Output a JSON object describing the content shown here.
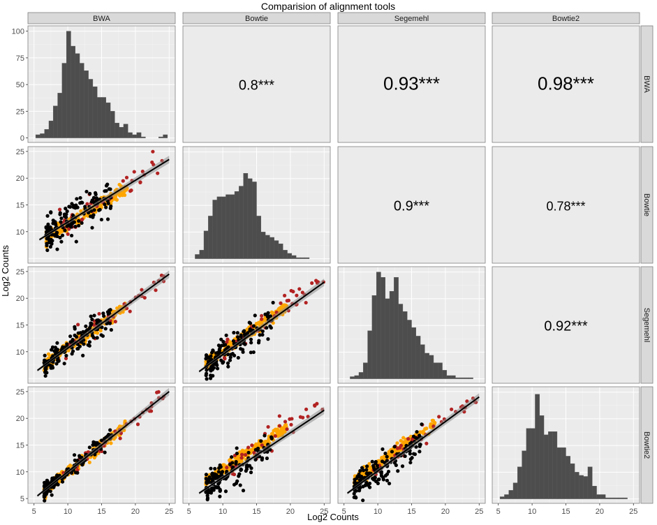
{
  "title": "Comparision of alignment tools",
  "xlabel": "Log2 Counts",
  "ylabel": "Log2 Counts",
  "tools": [
    "BWA",
    "Bowtie",
    "Segemehl",
    "Bowtie2"
  ],
  "axis": {
    "data_range": [
      5,
      25
    ],
    "ticks": [
      5,
      10,
      15,
      20,
      25
    ],
    "inner_ticks": [
      10,
      15,
      20,
      25
    ],
    "hist_count_ticks": [
      0,
      25,
      50,
      75,
      100
    ],
    "hist_count_max": 100
  },
  "colors": {
    "panel_bg": "#ebebeb",
    "hist_bar": "#4d4d4d",
    "point_black": "#000000",
    "point_orange": "#ffa500",
    "point_red": "#b22222",
    "fit_line": "#000000",
    "ribbon": "#8c8c8c"
  },
  "chart_data": {
    "type": "scatter",
    "kind": "pairs-matrix",
    "title": "Comparision of alignment tools",
    "xlabel": "Log2 Counts",
    "ylabel": "Log2 Counts",
    "variables": [
      "BWA",
      "Bowtie",
      "Segemehl",
      "Bowtie2"
    ],
    "xlim": [
      5,
      25
    ],
    "ylim": [
      5,
      25
    ],
    "correlations": [
      {
        "row": "BWA",
        "col": "Bowtie",
        "label": "0.8***",
        "size": "medium"
      },
      {
        "row": "BWA",
        "col": "Segemehl",
        "label": "0.93***",
        "size": "large"
      },
      {
        "row": "BWA",
        "col": "Bowtie2",
        "label": "0.98***",
        "size": "large"
      },
      {
        "row": "Bowtie",
        "col": "Segemehl",
        "label": "0.9***",
        "size": "medium"
      },
      {
        "row": "Bowtie",
        "col": "Bowtie2",
        "label": "0.78***",
        "size": "small"
      },
      {
        "row": "Segemehl",
        "col": "Bowtie2",
        "label": "0.92***",
        "size": "medium"
      }
    ],
    "histograms": [
      {
        "variable": "BWA",
        "bin_start": 5.25,
        "bin_width": 0.65,
        "counts": [
          3,
          4,
          8,
          16,
          30,
          42,
          70,
          100,
          86,
          79,
          70,
          63,
          55,
          48,
          38,
          38,
          33,
          25,
          14,
          10,
          13,
          5,
          3,
          5,
          1,
          0,
          0,
          0,
          1,
          3
        ]
      },
      {
        "variable": "Bowtie",
        "bin_start": 5.25,
        "bin_width": 0.65,
        "counts": [
          0,
          4,
          8,
          26,
          40,
          55,
          58,
          58,
          60,
          60,
          63,
          68,
          80,
          75,
          72,
          40,
          25,
          22,
          20,
          17,
          14,
          8,
          5,
          3,
          1,
          1,
          1
        ]
      },
      {
        "variable": "Segemehl",
        "bin_start": 5.25,
        "bin_width": 0.65,
        "counts": [
          0,
          2,
          3,
          6,
          15,
          45,
          78,
          100,
          95,
          75,
          82,
          95,
          70,
          63,
          55,
          48,
          40,
          32,
          24,
          22,
          15,
          15,
          8,
          3,
          3,
          1,
          1,
          1,
          1
        ]
      },
      {
        "variable": "Bowtie2",
        "bin_start": 5.25,
        "bin_width": 0.65,
        "counts": [
          2,
          4,
          8,
          15,
          30,
          45,
          66,
          66,
          98,
          78,
          60,
          63,
          63,
          48,
          48,
          40,
          33,
          25,
          22,
          21,
          30,
          12,
          4,
          4,
          1,
          1,
          1,
          1,
          1
        ]
      }
    ],
    "scatter_panels": [
      {
        "x": "BWA",
        "y": "Bowtie",
        "fit": {
          "x1": 5.8,
          "y1": 8.5,
          "x2": 25,
          "y2": 23.5
        },
        "noise": 1.6,
        "orange_offset": -0.4
      },
      {
        "x": "BWA",
        "y": "Segemehl",
        "fit": {
          "x1": 5.5,
          "y1": 6.5,
          "x2": 25,
          "y2": 24.5
        },
        "noise": 1.2,
        "orange_offset": 0.0
      },
      {
        "x": "Bowtie",
        "y": "Segemehl",
        "fit": {
          "x1": 6.5,
          "y1": 6.3,
          "x2": 25,
          "y2": 23.0
        },
        "noise": 1.4,
        "orange_offset": 0.5
      },
      {
        "x": "BWA",
        "y": "Bowtie2",
        "fit": {
          "x1": 5.5,
          "y1": 5.5,
          "x2": 25,
          "y2": 25.0
        },
        "noise": 0.8,
        "orange_offset": 0.0
      },
      {
        "x": "Bowtie",
        "y": "Bowtie2",
        "fit": {
          "x1": 6.5,
          "y1": 6.0,
          "x2": 25,
          "y2": 21.5
        },
        "noise": 1.5,
        "orange_offset": 1.4
      },
      {
        "x": "Segemehl",
        "y": "Bowtie2",
        "fit": {
          "x1": 5.5,
          "y1": 6.0,
          "x2": 25,
          "y2": 24.0
        },
        "noise": 1.3,
        "orange_offset": 1.3
      }
    ]
  }
}
